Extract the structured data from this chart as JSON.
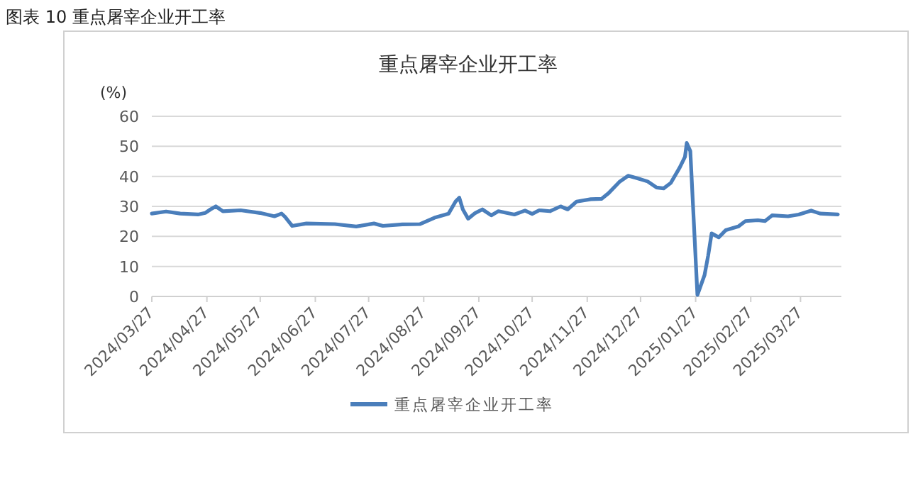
{
  "chart_data": {
    "type": "line",
    "title": "图表 10  重点屠宰企业开工率",
    "subtitle": "重点屠宰企业开工率",
    "ylabel": "(%)",
    "x": [
      "2024-03-27",
      "2024-04-04",
      "2024-04-12",
      "2024-04-22",
      "2024-04-26",
      "2024-04-29",
      "2024-05-02",
      "2024-05-06",
      "2024-05-16",
      "2024-05-27",
      "2024-06-04",
      "2024-06-08",
      "2024-06-10",
      "2024-06-14",
      "2024-06-22",
      "2024-07-08",
      "2024-07-20",
      "2024-07-30",
      "2024-08-04",
      "2024-08-15",
      "2024-08-25",
      "2024-09-02",
      "2024-09-10",
      "2024-09-14",
      "2024-09-16",
      "2024-09-18",
      "2024-09-21",
      "2024-09-25",
      "2024-09-29",
      "2024-10-04",
      "2024-10-08",
      "2024-10-17",
      "2024-10-23",
      "2024-10-27",
      "2024-10-31",
      "2024-11-06",
      "2024-11-12",
      "2024-11-16",
      "2024-11-21",
      "2024-11-29",
      "2024-12-05",
      "2024-12-09",
      "2024-12-15",
      "2024-12-20",
      "2024-12-25",
      "2024-12-31",
      "2025-01-05",
      "2025-01-09",
      "2025-01-13",
      "2025-01-18",
      "2025-01-21",
      "2025-01-22",
      "2025-01-24",
      "2025-01-28",
      "2025-02-01",
      "2025-02-03",
      "2025-02-05",
      "2025-02-09",
      "2025-02-13",
      "2025-02-20",
      "2025-02-24",
      "2025-03-03",
      "2025-03-07",
      "2025-03-11",
      "2025-03-20",
      "2025-03-26",
      "2025-04-02",
      "2025-04-07",
      "2025-04-17"
    ],
    "series": [
      {
        "name": "重点屠宰企业开工率",
        "color": "#4a7ebb",
        "values": [
          27.6,
          28.3,
          27.6,
          27.3,
          27.8,
          29,
          30,
          28.4,
          28.7,
          27.8,
          26.7,
          27.6,
          26.5,
          23.5,
          24.3,
          24.1,
          23.3,
          24.3,
          23.5,
          24,
          24.1,
          26.2,
          27.6,
          31.7,
          32.9,
          29,
          25.9,
          27.8,
          29,
          27,
          28.4,
          27.3,
          28.6,
          27.5,
          28.7,
          28.4,
          30,
          29,
          31.6,
          32.4,
          32.5,
          34.4,
          38.1,
          40.2,
          39.4,
          38.3,
          36.3,
          36,
          37.8,
          42.9,
          46.5,
          51.1,
          48.4,
          0.5,
          7.1,
          13.5,
          21,
          19.7,
          22.1,
          23.3,
          25.1,
          25.4,
          25.1,
          27,
          26.7,
          27.3,
          28.6,
          27.6,
          27.3
        ]
      }
    ],
    "xlim": [
      "2024-03-27",
      "2025-04-19"
    ],
    "xticks": [
      {
        "value": "2024-03-27",
        "label": "2024/03/27"
      },
      {
        "value": "2024-04-27",
        "label": "2024/04/27"
      },
      {
        "value": "2024-05-27",
        "label": "2024/05/27"
      },
      {
        "value": "2024-06-27",
        "label": "2024/06/27"
      },
      {
        "value": "2024-07-27",
        "label": "2024/07/27"
      },
      {
        "value": "2024-08-27",
        "label": "2024/08/27"
      },
      {
        "value": "2024-09-27",
        "label": "2024/09/27"
      },
      {
        "value": "2024-10-27",
        "label": "2024/10/27"
      },
      {
        "value": "2024-11-27",
        "label": "2024/11/27"
      },
      {
        "value": "2024-12-27",
        "label": "2024/12/27"
      },
      {
        "value": "2025-01-27",
        "label": "2025/01/27"
      },
      {
        "value": "2025-02-27",
        "label": "2025/02/27"
      },
      {
        "value": "2025-03-27",
        "label": "2025/03/27"
      }
    ],
    "ylim": [
      0,
      60
    ],
    "yticks": [
      0,
      10,
      20,
      30,
      40,
      50,
      60
    ],
    "grid": "y",
    "legend": "bottom",
    "marker": "none",
    "line_style": "solid"
  }
}
